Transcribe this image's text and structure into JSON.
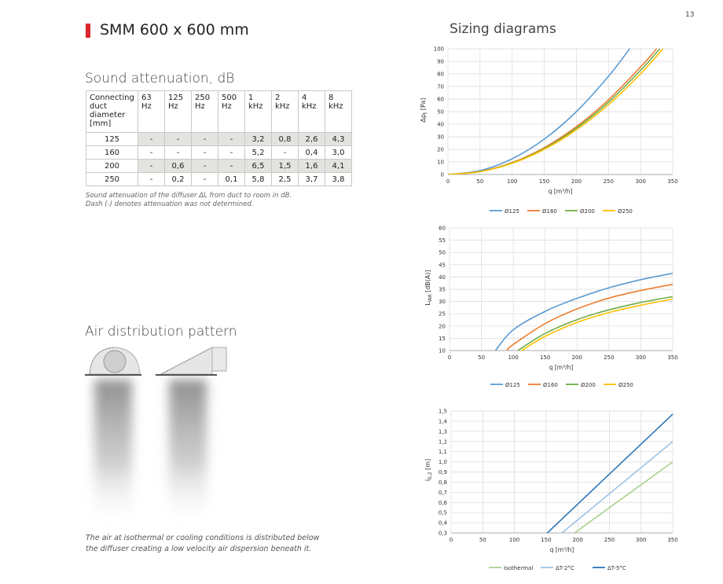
{
  "page_number": "13",
  "product_title": "SMM 600 x 600 mm",
  "sound_section_title": "Sound attenuation, dB",
  "air_section_title": "Air distribution pattern",
  "sizing_section_title": "Sizing diagrams",
  "colors": {
    "accent_red": "#d9262a",
    "blue": "#5b9bd5",
    "orange": "#ed7d31",
    "green": "#70ad47",
    "yellow": "#ffc000",
    "light_green": "#a9d18e",
    "light_blue": "#9dc3e6",
    "dark_blue": "#2e75b6"
  },
  "table": {
    "headers": [
      "Connecting duct diameter [mm]",
      "63 Hz",
      "125 Hz",
      "250 Hz",
      "500 Hz",
      "1 kHz",
      "2 kHz",
      "4 kHz",
      "8 kHz"
    ],
    "rows": [
      [
        "125",
        "-",
        "-",
        "-",
        "-",
        "3,2",
        "0,8",
        "2,6",
        "4,3"
      ],
      [
        "160",
        "-",
        "-",
        "-",
        "-",
        "5,2",
        "-",
        "0,4",
        "3,0"
      ],
      [
        "200",
        "-",
        "0,6",
        "-",
        "-",
        "6,5",
        "1,5",
        "1,6",
        "4,1"
      ],
      [
        "250",
        "-",
        "0,2",
        "-",
        "0,1",
        "5,8",
        "2,5",
        "3,7",
        "3,8"
      ]
    ]
  },
  "table_note_1": "Sound attenuation of the diffuser ΔL from duct to room in dB.",
  "table_note_2": "Dash (-) denotes attenuation was not determined.",
  "air_caption_1": "The air at isothermal or cooling conditions is distributed below",
  "air_caption_2": "the diffuser creating a low velocity air dispersion beneath it.",
  "chart_data": [
    {
      "type": "line",
      "xlabel": "q [m³/h]",
      "ylabel": "Δpt [Pa]",
      "xlim": [
        0,
        350
      ],
      "ylim": [
        0,
        100
      ],
      "xticks": [
        "0",
        "50",
        "100",
        "150",
        "200",
        "250",
        "300",
        "350"
      ],
      "yticks": [
        "0",
        "10",
        "20",
        "30",
        "40",
        "50",
        "60",
        "70",
        "80",
        "90",
        "100"
      ],
      "grid": true,
      "legend": "bottom",
      "series": [
        {
          "name": "Ø125",
          "color": "#5b9bd5",
          "points": [
            [
              0,
              0
            ],
            [
              50,
              3.1
            ],
            [
              100,
              12.5
            ],
            [
              150,
              28.1
            ],
            [
              200,
              50
            ],
            [
              250,
              78.1
            ],
            [
              283,
              100
            ]
          ]
        },
        {
          "name": "Ø160",
          "color": "#ed7d31",
          "points": [
            [
              0,
              0
            ],
            [
              50,
              2.4
            ],
            [
              100,
              9.5
            ],
            [
              150,
              21.4
            ],
            [
              200,
              38
            ],
            [
              250,
              59.4
            ],
            [
              300,
              85.5
            ],
            [
              325,
              100
            ]
          ]
        },
        {
          "name": "Ø200",
          "color": "#70ad47",
          "points": [
            [
              0,
              0
            ],
            [
              50,
              2.3
            ],
            [
              100,
              9.2
            ],
            [
              150,
              20.7
            ],
            [
              200,
              36.8
            ],
            [
              250,
              57.5
            ],
            [
              300,
              82.8
            ],
            [
              330,
              100
            ]
          ]
        },
        {
          "name": "Ø250",
          "color": "#ffc000",
          "points": [
            [
              0,
              0
            ],
            [
              50,
              2.2
            ],
            [
              100,
              8.9
            ],
            [
              150,
              20
            ],
            [
              200,
              35.5
            ],
            [
              250,
              55.5
            ],
            [
              300,
              80
            ],
            [
              335,
              100
            ]
          ]
        }
      ]
    },
    {
      "type": "line",
      "xlabel": "q [m³/h]",
      "ylabel": "LWA [dB(A)]",
      "xlim": [
        0,
        350
      ],
      "ylim": [
        10,
        60
      ],
      "xticks": [
        "0",
        "50",
        "100",
        "150",
        "200",
        "250",
        "300",
        "350"
      ],
      "yticks": [
        "10",
        "15",
        "20",
        "25",
        "30",
        "35",
        "40",
        "45",
        "50",
        "55",
        "60"
      ],
      "grid": true,
      "legend": "bottom",
      "series": [
        {
          "name": "Ø125",
          "color": "#5b9bd5",
          "points": [
            [
              72,
              10
            ],
            [
              100,
              18.5
            ],
            [
              150,
              26
            ],
            [
              200,
              31.3
            ],
            [
              250,
              35.6
            ],
            [
              300,
              38.9
            ],
            [
              350,
              41.5
            ]
          ]
        },
        {
          "name": "Ø160",
          "color": "#ed7d31",
          "points": [
            [
              90,
              10
            ],
            [
              100,
              12.5
            ],
            [
              150,
              21
            ],
            [
              200,
              27
            ],
            [
              250,
              31.4
            ],
            [
              300,
              34.5
            ],
            [
              350,
              37
            ]
          ]
        },
        {
          "name": "Ø200",
          "color": "#70ad47",
          "points": [
            [
              107,
              10
            ],
            [
              150,
              17
            ],
            [
              200,
              22.6
            ],
            [
              250,
              26.6
            ],
            [
              300,
              29.6
            ],
            [
              350,
              32
            ]
          ]
        },
        {
          "name": "Ø250",
          "color": "#ffc000",
          "points": [
            [
              113,
              10
            ],
            [
              150,
              15.8
            ],
            [
              200,
              21.5
            ],
            [
              250,
              25.5
            ],
            [
              300,
              28.5
            ],
            [
              350,
              31
            ]
          ]
        }
      ]
    },
    {
      "type": "line",
      "xlabel": "q [m³/h]",
      "ylabel": "l0,2 [m]",
      "xlim": [
        0,
        350
      ],
      "ylim": [
        0.3,
        1.5
      ],
      "xticks": [
        "0",
        "50",
        "100",
        "150",
        "200",
        "250",
        "300",
        "350"
      ],
      "yticks": [
        "0,3",
        "0,4",
        "0,5",
        "0,6",
        "0,7",
        "0,8",
        "0,9",
        "1,0",
        "1,1",
        "1,2",
        "1,3",
        "1,4",
        "1,5"
      ],
      "grid": true,
      "legend": "bottom",
      "series": [
        {
          "name": "Isothermal",
          "color": "#a9d18e",
          "points": [
            [
              195,
              0.3
            ],
            [
              350,
              1.0
            ]
          ]
        },
        {
          "name": "ΔT-2°C",
          "color": "#9dc3e6",
          "points": [
            [
              175,
              0.3
            ],
            [
              350,
              1.2
            ]
          ]
        },
        {
          "name": "ΔT-5°C",
          "color": "#2e75b6",
          "points": [
            [
              152,
              0.3
            ],
            [
              350,
              1.47
            ]
          ]
        }
      ]
    }
  ]
}
